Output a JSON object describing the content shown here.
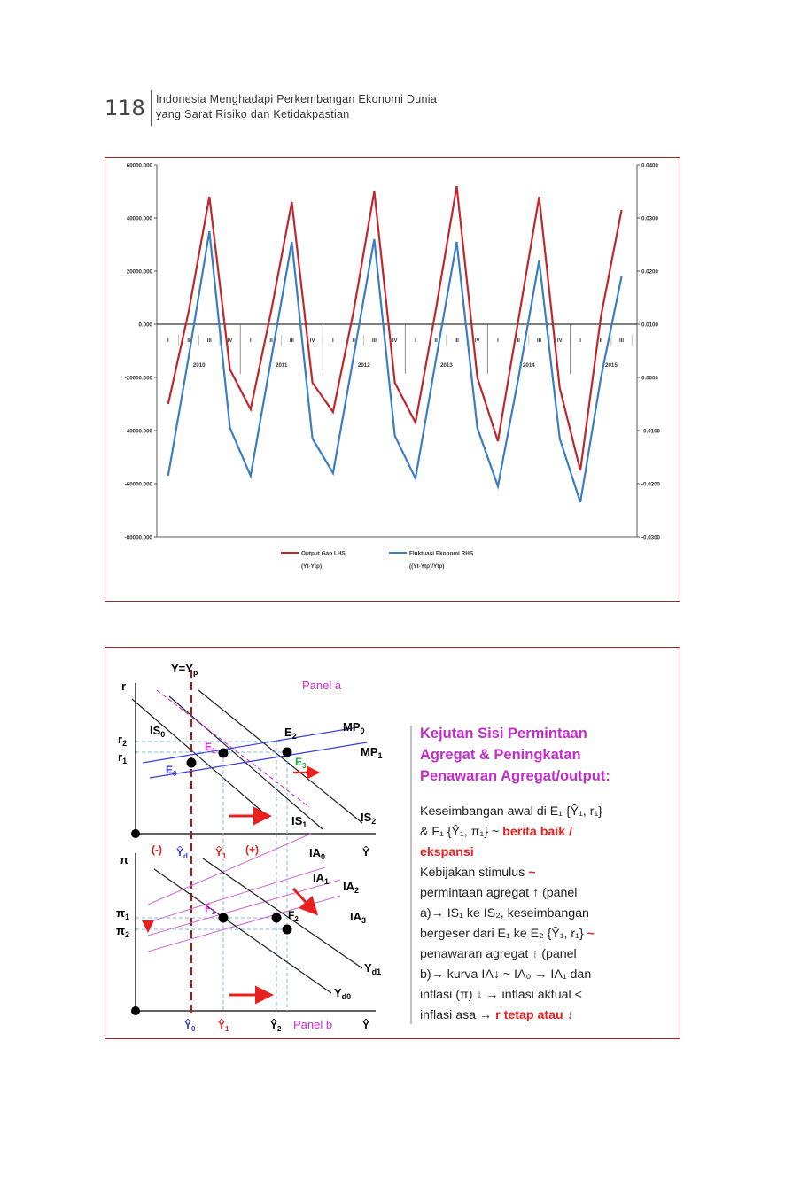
{
  "header": {
    "page_number": "118",
    "title_line1": "Indonesia Menghadapi Perkembangan Ekonomi Dunia",
    "title_line2": "yang Sarat Risiko dan Ketidakpastian"
  },
  "chart_data": {
    "type": "line",
    "title": "",
    "quarters": [
      "I",
      "II",
      "III",
      "IV",
      "I",
      "II",
      "III",
      "IV",
      "I",
      "II",
      "III",
      "IV",
      "I",
      "II",
      "III",
      "IV",
      "I",
      "II",
      "III",
      "IV",
      "I",
      "II",
      "III"
    ],
    "years": [
      "2010",
      "2011",
      "2012",
      "2013",
      "2014",
      "2015"
    ],
    "left_axis": {
      "ticks": [
        "60000.000",
        "40000.000",
        "20000.000",
        "0.000",
        "-20000.000",
        "-40000.000",
        "-60000.000",
        "-80000.000"
      ],
      "ylim": [
        -80000,
        60000
      ]
    },
    "right_axis": {
      "ticks": [
        "0.0400",
        "0.0300",
        "0.0200",
        "0.0100",
        "0.0000",
        "-0.0100",
        "-0.0200",
        "-0.0300"
      ],
      "ylim": [
        -0.03,
        0.04
      ]
    },
    "series": [
      {
        "name": "Output Gap LHS",
        "name2": "(Yt-Ytp)",
        "axis": "left",
        "color": "#c0272d",
        "values": [
          -30000,
          5000,
          48000,
          -17000,
          -32000,
          5000,
          46000,
          -22000,
          -33000,
          5000,
          50000,
          -22000,
          -37000,
          6000,
          52000,
          -20000,
          -44000,
          2000,
          48000,
          -24000,
          -55000,
          3000,
          43000
        ]
      },
      {
        "name": "Fluktuasi Ekonomi RHS",
        "name2": "((Yt-Ytp)/Ytp)",
        "axis": "right",
        "color": "#3b7dc4",
        "values": [
          -0.0185,
          0.004,
          0.0275,
          -0.0095,
          -0.0185,
          0.0035,
          0.0255,
          -0.0115,
          -0.018,
          0.004,
          0.026,
          -0.011,
          -0.019,
          0.0035,
          0.0255,
          -0.0095,
          -0.0205,
          0.0,
          0.022,
          -0.0115,
          -0.0235,
          0.0,
          0.019
        ]
      }
    ],
    "grid": false,
    "legend": "bottom"
  },
  "diagram": {
    "panel_a": "Panel a",
    "panel_b": "Panel b",
    "y_eq_yp": "Y=Y",
    "y_eq_yp_sub": "p",
    "axis_r": "r",
    "axis_pi": "π",
    "r2": "r",
    "r2_sub": "2",
    "r1": "r",
    "r1_sub": "1",
    "pi1": "π",
    "pi1_sub": "1",
    "pi2": "π",
    "pi2_sub": "2",
    "is0": "IS",
    "is0_sub": "0",
    "is1": "IS",
    "is1_sub": "1",
    "is2": "IS",
    "is2_sub": "2",
    "mp0": "MP",
    "mp0_sub": "0",
    "mp1": "MP",
    "mp1_sub": "1",
    "e0": "E",
    "e0_sub": "0",
    "e1": "E",
    "e1_sub": "1",
    "e2": "E",
    "e2_sub": "2",
    "e3": "E",
    "e3_sub": "3",
    "f1": "F",
    "f1_sub": "1",
    "f2": "F",
    "f2_sub": "2",
    "ia0": "IA",
    "ia0_sub": "0",
    "ia1": "IA",
    "ia1_sub": "1",
    "ia2": "IA",
    "ia2_sub": "2",
    "ia3": "IA",
    "ia3_sub": "3",
    "yd1": "Y",
    "yd1_sub": "d1",
    "yd0": "Y",
    "yd0_sub": "d0",
    "minus": "(-)",
    "plus": "(+)",
    "yhat": "Ŷ",
    "yhat_d": "Ŷ",
    "yhat_d_sub": "d",
    "yhat_1": "Ŷ",
    "yhat_1_sub": "1",
    "yhat_0": "Ŷ",
    "yhat_0_sub": "0",
    "yhat_2": "Ŷ",
    "yhat_2_sub": "2",
    "colors": {
      "magenta": "#d22bd2",
      "red": "#e82020",
      "blue": "#3a3ad8",
      "green": "#1aa83c",
      "lightblue": "#7ab8e8",
      "pink": "#d36fd0"
    }
  },
  "text_panel": {
    "title": [
      "Kejutan Sisi Permintaan",
      "Agregat & Peningkatan",
      "Penawaran Agregat/output:"
    ],
    "body": [
      "Keseimbangan awal di E₁ {Ŷ₁, r₁}",
      "& F₁ {Ŷ₁, π₁} ~ |berita baik /",
      "|ekspansi",
      "Kebijakan stimulus |~",
      "permintaan agregat ↑ (panel",
      "a)→ IS₁ ke IS₂, keseimbangan",
      "bergeser dari E₁ ke E₂ {Ŷ₁, r₁} |~",
      "penawaran agregat ↑ (panel",
      "b)→ kurva IA↓ ~ IA₀ → IA₁  dan",
      "inflasi (π) ↓ → inflasi aktual <",
      "inflasi asa → |r  tetap atau ↓"
    ]
  }
}
